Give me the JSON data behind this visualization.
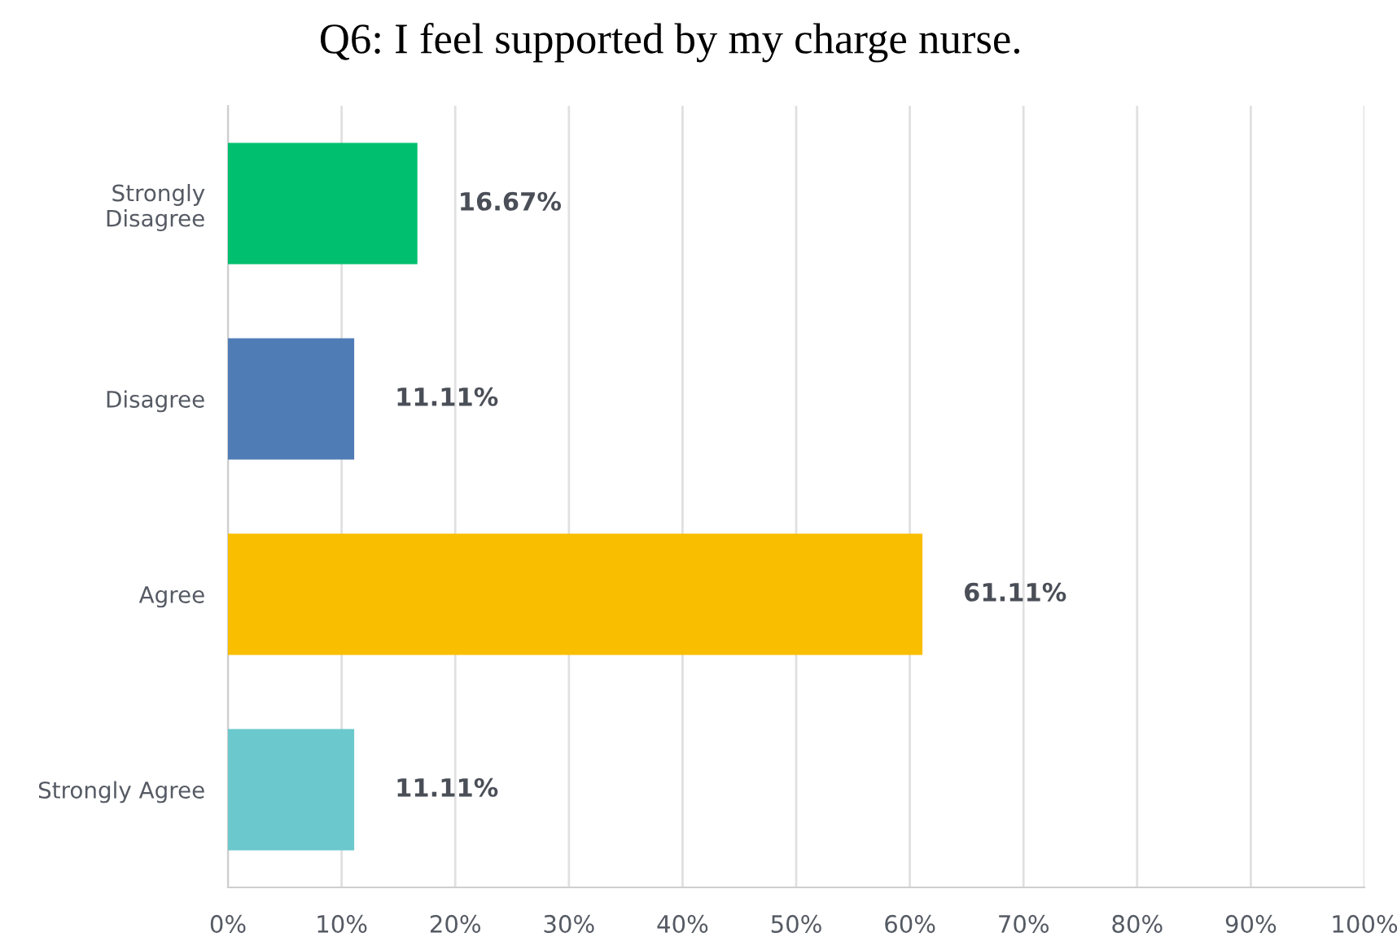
{
  "chart_data": {
    "type": "bar",
    "title": "Q6: I feel supported by my charge nurse.",
    "orientation": "horizontal",
    "categories": [
      "Strongly\nDisagree",
      "Disagree",
      "Agree",
      "Strongly Agree"
    ],
    "values": [
      16.67,
      11.11,
      61.11,
      11.11
    ],
    "colors": [
      "#00bf6f",
      "#507cb6",
      "#f9be00",
      "#6bc8cd"
    ],
    "value_labels": [
      "16.67%",
      "11.11%",
      "61.11%",
      "11.11%"
    ],
    "xlim": [
      0,
      100
    ],
    "xticks": [
      {
        "value": 0,
        "label": "0%"
      },
      {
        "value": 10,
        "label": "10%"
      },
      {
        "value": 20,
        "label": "20%"
      },
      {
        "value": 30,
        "label": "30%"
      },
      {
        "value": 40,
        "label": "40%"
      },
      {
        "value": 50,
        "label": "50%"
      },
      {
        "value": 60,
        "label": "60%"
      },
      {
        "value": 70,
        "label": "70%"
      },
      {
        "value": 80,
        "label": "80%"
      },
      {
        "value": 90,
        "label": "90%"
      },
      {
        "value": 100,
        "label": "100%"
      }
    ],
    "grid": "x",
    "legend": false
  }
}
